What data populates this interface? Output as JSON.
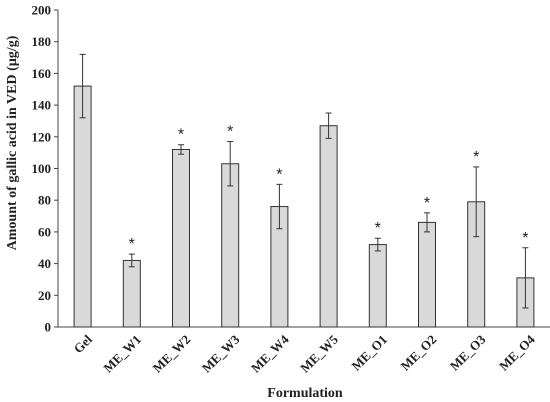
{
  "chart_data": {
    "type": "bar",
    "xlabel": "Formulation",
    "ylabel": "Amount of gallic acid in VED (µg/g)",
    "ylim": [
      0,
      200
    ],
    "yticks": [
      0,
      20,
      40,
      60,
      80,
      100,
      120,
      140,
      160,
      180,
      200
    ],
    "grid": false,
    "bar_color": "#d9d9d9",
    "bar_edge_color": "#333333",
    "categories": [
      "Gel",
      "ME_W1",
      "ME_W2",
      "ME_W3",
      "ME_W4",
      "ME_W5",
      "ME_O1",
      "ME_O2",
      "ME_O3",
      "ME_O4"
    ],
    "values": [
      152,
      42,
      112,
      103,
      76,
      127,
      52,
      66,
      79,
      31
    ],
    "errors": [
      20,
      4,
      3,
      14,
      14,
      8,
      4,
      6,
      22,
      19
    ],
    "significance": [
      "",
      "*",
      "*",
      "*",
      "*",
      "",
      "*",
      "*",
      "*",
      "*"
    ]
  }
}
